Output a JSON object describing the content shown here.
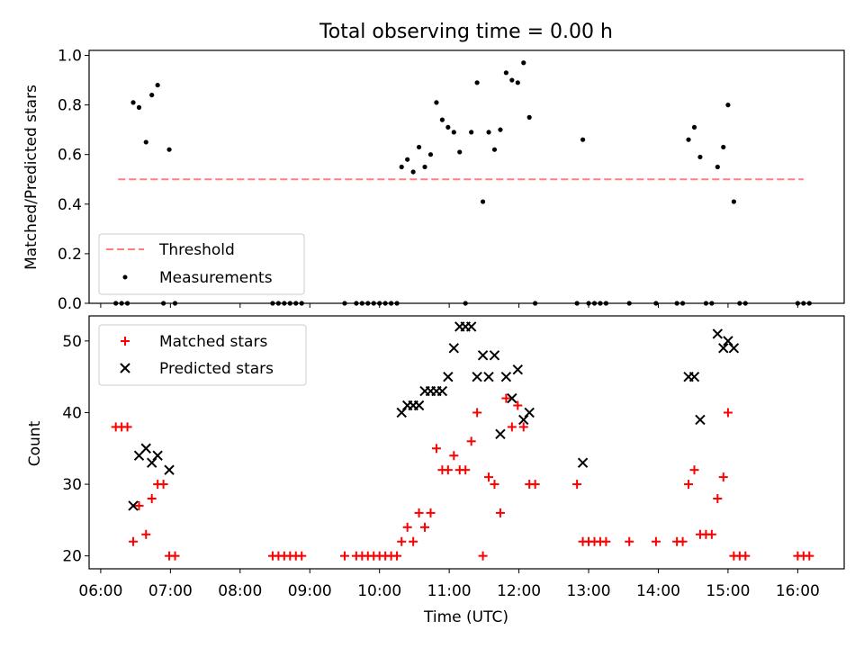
{
  "chart_data": [
    {
      "type": "scatter",
      "title": "Total observing time = 0.00 h",
      "xlabel": "",
      "ylabel": "Matched/Predicted stars",
      "xlim": [
        "05:50",
        "16:40"
      ],
      "ylim": [
        0,
        1.02
      ],
      "yticks": [
        "0.0",
        "0.2",
        "0.4",
        "0.6",
        "0.8",
        "1.0"
      ],
      "threshold": {
        "name": "Threshold",
        "value": 0.5,
        "x": [
          "06:15",
          "16:05"
        ],
        "color": "#ff7f7f"
      },
      "series": [
        {
          "name": "Measurements",
          "color": "#000000",
          "points": [
            [
              "06:13",
              0
            ],
            [
              "06:18",
              0
            ],
            [
              "06:23",
              0
            ],
            [
              "06:28",
              0.81
            ],
            [
              "06:33",
              0.79
            ],
            [
              "06:39",
              0.65
            ],
            [
              "06:44",
              0.84
            ],
            [
              "06:49",
              0.88
            ],
            [
              "06:54",
              0
            ],
            [
              "06:59",
              0.62
            ],
            [
              "07:04",
              0
            ],
            [
              "08:28",
              0
            ],
            [
              "08:33",
              0
            ],
            [
              "08:38",
              0
            ],
            [
              "08:43",
              0
            ],
            [
              "08:48",
              0
            ],
            [
              "08:53",
              0
            ],
            [
              "09:30",
              0
            ],
            [
              "09:40",
              0
            ],
            [
              "09:45",
              0
            ],
            [
              "09:50",
              0
            ],
            [
              "09:55",
              0
            ],
            [
              "10:00",
              0
            ],
            [
              "10:05",
              0
            ],
            [
              "10:10",
              0
            ],
            [
              "10:15",
              0
            ],
            [
              "10:19",
              0.55
            ],
            [
              "10:24",
              0.58
            ],
            [
              "10:29",
              0.53
            ],
            [
              "10:34",
              0.63
            ],
            [
              "10:39",
              0.55
            ],
            [
              "10:44",
              0.6
            ],
            [
              "10:49",
              0.81
            ],
            [
              "10:54",
              0.74
            ],
            [
              "10:59",
              0.71
            ],
            [
              "11:04",
              0.69
            ],
            [
              "11:09",
              0.61
            ],
            [
              "11:14",
              0
            ],
            [
              "11:19",
              0.69
            ],
            [
              "11:24",
              0.89
            ],
            [
              "11:29",
              0.41
            ],
            [
              "11:34",
              0.69
            ],
            [
              "11:39",
              0.62
            ],
            [
              "11:44",
              0.7
            ],
            [
              "11:49",
              0.93
            ],
            [
              "11:54",
              0.9
            ],
            [
              "11:59",
              0.89
            ],
            [
              "12:04",
              0.97
            ],
            [
              "12:09",
              0.75
            ],
            [
              "12:14",
              0
            ],
            [
              "12:50",
              0
            ],
            [
              "12:55",
              0.66
            ],
            [
              "13:00",
              0
            ],
            [
              "13:05",
              0
            ],
            [
              "13:10",
              0
            ],
            [
              "13:15",
              0
            ],
            [
              "13:35",
              0
            ],
            [
              "13:58",
              0
            ],
            [
              "14:16",
              0
            ],
            [
              "14:21",
              0
            ],
            [
              "14:26",
              0.66
            ],
            [
              "14:31",
              0.71
            ],
            [
              "14:36",
              0.59
            ],
            [
              "14:41",
              0
            ],
            [
              "14:46",
              0
            ],
            [
              "14:51",
              0.55
            ],
            [
              "14:56",
              0.63
            ],
            [
              "15:00",
              0.8
            ],
            [
              "15:05",
              0.41
            ],
            [
              "15:10",
              0
            ],
            [
              "15:15",
              0
            ],
            [
              "16:00",
              0
            ],
            [
              "16:05",
              0
            ],
            [
              "16:10",
              0
            ]
          ]
        }
      ],
      "legend": [
        "Threshold",
        "Measurements"
      ],
      "legend_position": "lower left"
    },
    {
      "type": "scatter",
      "title": "",
      "xlabel": "Time (UTC)",
      "ylabel": "Count",
      "xlim": [
        "05:50",
        "16:40"
      ],
      "ylim": [
        18.2,
        53.5
      ],
      "yticks": [
        "20",
        "30",
        "40",
        "50"
      ],
      "xticks": [
        "06:00",
        "07:00",
        "08:00",
        "09:00",
        "10:00",
        "11:00",
        "12:00",
        "13:00",
        "14:00",
        "15:00",
        "16:00"
      ],
      "series": [
        {
          "name": "Matched stars",
          "color": "#ff0000",
          "marker": "+",
          "points": [
            [
              "06:13",
              38
            ],
            [
              "06:18",
              38
            ],
            [
              "06:23",
              38
            ],
            [
              "06:28",
              22
            ],
            [
              "06:33",
              27
            ],
            [
              "06:39",
              23
            ],
            [
              "06:44",
              28
            ],
            [
              "06:49",
              30
            ],
            [
              "06:54",
              30
            ],
            [
              "06:59",
              20
            ],
            [
              "07:04",
              20
            ],
            [
              "08:28",
              20
            ],
            [
              "08:33",
              20
            ],
            [
              "08:38",
              20
            ],
            [
              "08:43",
              20
            ],
            [
              "08:48",
              20
            ],
            [
              "08:53",
              20
            ],
            [
              "09:30",
              20
            ],
            [
              "09:40",
              20
            ],
            [
              "09:45",
              20
            ],
            [
              "09:50",
              20
            ],
            [
              "09:55",
              20
            ],
            [
              "10:00",
              20
            ],
            [
              "10:05",
              20
            ],
            [
              "10:10",
              20
            ],
            [
              "10:15",
              20
            ],
            [
              "10:19",
              22
            ],
            [
              "10:24",
              24
            ],
            [
              "10:29",
              22
            ],
            [
              "10:34",
              26
            ],
            [
              "10:39",
              24
            ],
            [
              "10:44",
              26
            ],
            [
              "10:49",
              35
            ],
            [
              "10:54",
              32
            ],
            [
              "10:59",
              32
            ],
            [
              "11:04",
              34
            ],
            [
              "11:09",
              32
            ],
            [
              "11:14",
              32
            ],
            [
              "11:19",
              36
            ],
            [
              "11:24",
              40
            ],
            [
              "11:29",
              20
            ],
            [
              "11:34",
              31
            ],
            [
              "11:39",
              30
            ],
            [
              "11:44",
              26
            ],
            [
              "11:49",
              42
            ],
            [
              "11:54",
              38
            ],
            [
              "11:59",
              41
            ],
            [
              "12:04",
              38
            ],
            [
              "12:09",
              30
            ],
            [
              "12:14",
              30
            ],
            [
              "12:50",
              30
            ],
            [
              "12:55",
              22
            ],
            [
              "13:00",
              22
            ],
            [
              "13:05",
              22
            ],
            [
              "13:10",
              22
            ],
            [
              "13:15",
              22
            ],
            [
              "13:35",
              22
            ],
            [
              "13:58",
              22
            ],
            [
              "14:16",
              22
            ],
            [
              "14:21",
              22
            ],
            [
              "14:26",
              30
            ],
            [
              "14:31",
              32
            ],
            [
              "14:36",
              23
            ],
            [
              "14:41",
              23
            ],
            [
              "14:46",
              23
            ],
            [
              "14:51",
              28
            ],
            [
              "14:56",
              31
            ],
            [
              "15:00",
              40
            ],
            [
              "15:05",
              20
            ],
            [
              "15:10",
              20
            ],
            [
              "15:15",
              20
            ],
            [
              "16:00",
              20
            ],
            [
              "16:05",
              20
            ],
            [
              "16:10",
              20
            ]
          ]
        },
        {
          "name": "Predicted stars",
          "color": "#000000",
          "marker": "x",
          "points": [
            [
              "06:28",
              27
            ],
            [
              "06:33",
              34
            ],
            [
              "06:39",
              35
            ],
            [
              "06:44",
              33
            ],
            [
              "06:49",
              34
            ],
            [
              "06:59",
              32
            ],
            [
              "10:19",
              40
            ],
            [
              "10:24",
              41
            ],
            [
              "10:29",
              41
            ],
            [
              "10:34",
              41
            ],
            [
              "10:39",
              43
            ],
            [
              "10:44",
              43
            ],
            [
              "10:49",
              43
            ],
            [
              "10:54",
              43
            ],
            [
              "10:59",
              45
            ],
            [
              "11:04",
              49
            ],
            [
              "11:09",
              52
            ],
            [
              "11:14",
              52
            ],
            [
              "11:19",
              52
            ],
            [
              "11:24",
              45
            ],
            [
              "11:29",
              48
            ],
            [
              "11:34",
              45
            ],
            [
              "11:39",
              48
            ],
            [
              "11:44",
              37
            ],
            [
              "11:49",
              45
            ],
            [
              "11:54",
              42
            ],
            [
              "11:59",
              46
            ],
            [
              "12:04",
              39
            ],
            [
              "12:09",
              40
            ],
            [
              "12:55",
              33
            ],
            [
              "14:26",
              45
            ],
            [
              "14:31",
              45
            ],
            [
              "14:36",
              39
            ],
            [
              "14:51",
              51
            ],
            [
              "14:56",
              49
            ],
            [
              "15:00",
              50
            ],
            [
              "15:05",
              49
            ]
          ]
        }
      ],
      "legend": [
        "Matched stars",
        "Predicted stars"
      ],
      "legend_position": "upper left"
    }
  ]
}
